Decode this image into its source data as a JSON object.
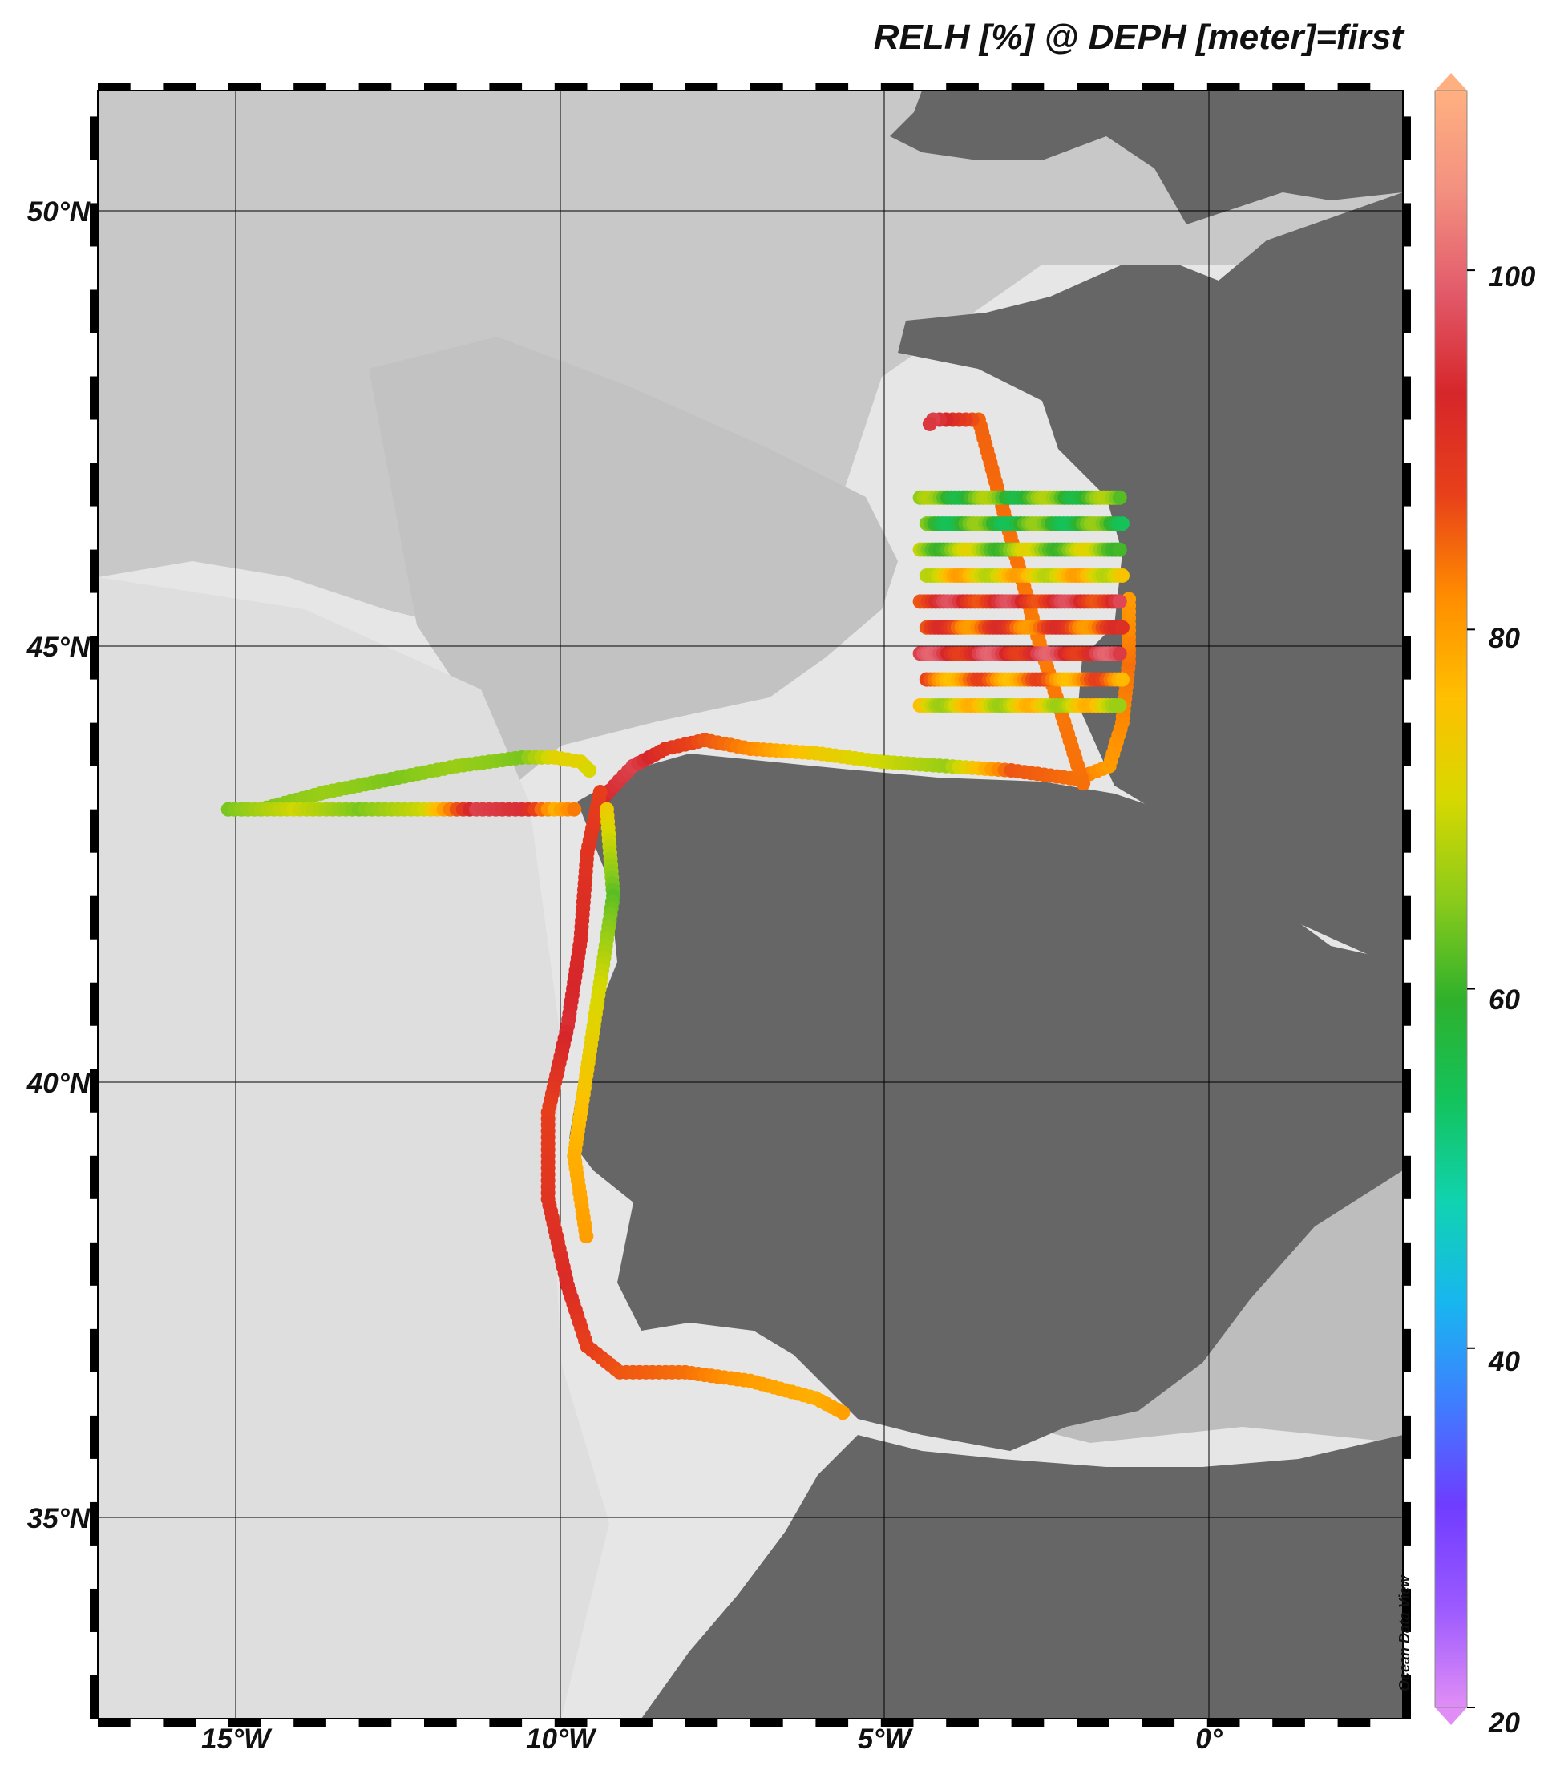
{
  "title": "RELH [%] @ DEPH [meter]=first",
  "watermark": "Ocean Data View",
  "lat_labels": [
    "50°N",
    "45°N",
    "40°N",
    "35°N"
  ],
  "lon_labels": [
    "15°W",
    "10°W",
    "5°W",
    "0°"
  ],
  "colorbar": {
    "ticks": [
      "20",
      "40",
      "60",
      "80",
      "100"
    ],
    "min": 20,
    "max": 110,
    "colors": [
      "#e08ef5",
      "#9b59ff",
      "#6f3cff",
      "#3f7dff",
      "#18b6f0",
      "#10d3b0",
      "#13c35c",
      "#2fb12c",
      "#8ccb1a",
      "#d8d800",
      "#ffbf00",
      "#ff8c00",
      "#e8401a",
      "#d6262a",
      "#e25a6a",
      "#f39080",
      "#ffb080"
    ]
  },
  "colors": {
    "ocean_light": "#e8e8e8",
    "ocean_mid": "#bdbdbd",
    "ocean_deep": "#a4a4a4",
    "land": "#666666",
    "grid": "#000000"
  },
  "map": {
    "lon_range": [
      -17,
      3
    ],
    "lat_range": [
      32.5,
      51.3
    ]
  },
  "chart_data": {
    "type": "scatter",
    "title": "RELH [%] @ DEPH [meter]=first",
    "variable": "RELH [%]",
    "colorbar_range": [
      20,
      110
    ],
    "tracks": [
      {
        "points": [
          [
            -15,
            43.0,
            62
          ],
          [
            -14.5,
            43.0,
            64
          ],
          [
            -13.5,
            43.2,
            66
          ],
          [
            -12.5,
            43.35,
            64
          ],
          [
            -11.5,
            43.5,
            66
          ],
          [
            -10.5,
            43.6,
            64
          ],
          [
            -10.0,
            43.6,
            72
          ],
          [
            -9.6,
            43.55,
            72
          ],
          [
            -9.4,
            43.4,
            70
          ]
        ]
      },
      {
        "points": [
          [
            -15,
            43.0,
            64
          ],
          [
            -14,
            43.0,
            70
          ],
          [
            -13,
            43.0,
            64
          ],
          [
            -12,
            43.0,
            70
          ],
          [
            -11.2,
            43.0,
            96
          ],
          [
            -10.5,
            43.0,
            94
          ],
          [
            -10.0,
            43.0,
            78
          ],
          [
            -9.6,
            43.0,
            85
          ]
        ]
      },
      {
        "points": [
          [
            -9.3,
            43.1,
            93
          ],
          [
            -8.8,
            43.5,
            96
          ],
          [
            -8.3,
            43.7,
            90
          ],
          [
            -7.7,
            43.8,
            86
          ],
          [
            -7.0,
            43.7,
            82
          ],
          [
            -6.0,
            43.65,
            74
          ],
          [
            -5.0,
            43.55,
            70
          ],
          [
            -4.0,
            43.5,
            66
          ],
          [
            -3.0,
            43.45,
            86
          ],
          [
            -2.0,
            43.35,
            84
          ],
          [
            -1.5,
            43.5,
            80
          ],
          [
            -1.3,
            44.0,
            82
          ],
          [
            -1.2,
            44.7,
            84
          ],
          [
            -1.2,
            45.5,
            80
          ]
        ]
      },
      {
        "points": [
          [
            -1.9,
            43.3,
            84
          ],
          [
            -2.6,
            45.0,
            83
          ],
          [
            -3.5,
            47.5,
            85
          ],
          [
            -4.2,
            47.5,
            96
          ],
          [
            -4.3,
            47.4,
            94
          ]
        ]
      },
      {
        "points": [
          [
            -9.3,
            43.2,
            88
          ],
          [
            -9.5,
            42.5,
            90
          ],
          [
            -9.6,
            41.5,
            92
          ],
          [
            -9.8,
            40.5,
            94
          ],
          [
            -10.1,
            39.5,
            88
          ],
          [
            -10.1,
            38.5,
            90
          ],
          [
            -9.8,
            37.5,
            92
          ],
          [
            -9.5,
            36.8,
            88
          ],
          [
            -9.0,
            36.5,
            86
          ],
          [
            -8.0,
            36.5,
            84
          ],
          [
            -7.0,
            36.4,
            80
          ],
          [
            -6.0,
            36.2,
            78
          ],
          [
            -5.5,
            36.0,
            80
          ]
        ]
      },
      {
        "points": [
          [
            -9.2,
            43.0,
            74
          ],
          [
            -9.1,
            42.0,
            62
          ],
          [
            -9.3,
            41.0,
            70
          ],
          [
            -9.5,
            40.0,
            74
          ],
          [
            -9.7,
            39.0,
            78
          ],
          [
            -9.5,
            38.0,
            80
          ]
        ]
      }
    ],
    "survey_lines_lat": [
      46.6,
      46.3,
      46.0,
      45.7,
      45.4,
      45.1,
      44.8,
      44.5,
      44.2
    ],
    "survey_lines_color_values": [
      62,
      60,
      66,
      74,
      92,
      86,
      94,
      82,
      72
    ]
  }
}
